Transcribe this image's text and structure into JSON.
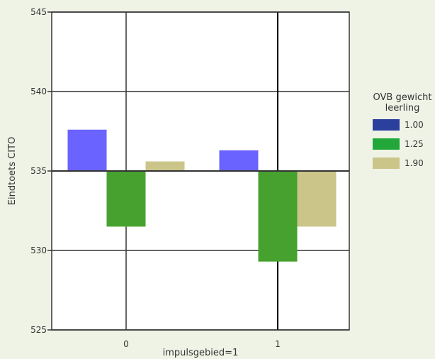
{
  "chart_data": {
    "type": "bar",
    "categories": [
      "0",
      "1"
    ],
    "baseline": 535,
    "xlabel": "impulsgebied=1",
    "ylabel": "Eindtoets CITO",
    "ylim": [
      525,
      545
    ],
    "yticks": [
      "525",
      "530",
      "535",
      "540",
      "545"
    ],
    "grid": true,
    "legend": {
      "title": [
        "OVB gewicht",
        "leerling"
      ],
      "placement": "right"
    },
    "series": [
      {
        "name": "1.00",
        "values": [
          537.6,
          536.3
        ],
        "legend_color": "#2b3f9c",
        "bar_color": "#6a63ff"
      },
      {
        "name": "1.25",
        "values": [
          531.5,
          529.3
        ],
        "legend_color": "#22a83a",
        "bar_color": "#47a12e"
      },
      {
        "name": "1.90",
        "values": [
          535.6,
          531.5
        ],
        "legend_color": "#cbc58a",
        "bar_color": "#cbc58a"
      }
    ]
  }
}
